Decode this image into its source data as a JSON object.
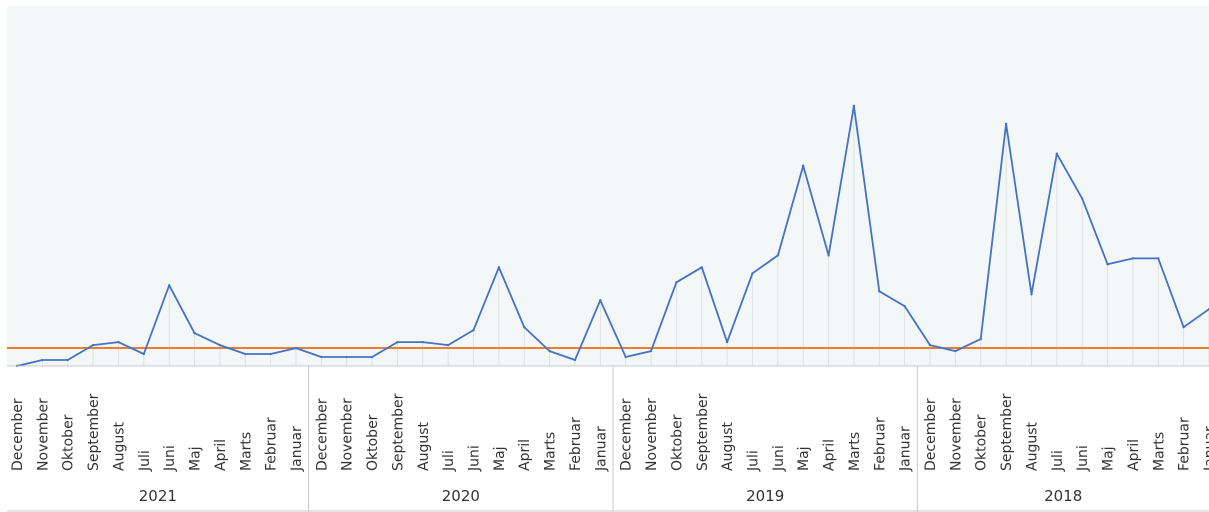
{
  "chart_data": {
    "type": "line",
    "title": "",
    "xlabel": "",
    "ylabel": "",
    "ylim": [
      0,
      100
    ],
    "grid": false,
    "legend": "none",
    "colors": {
      "plot_background": "#f4f7f7",
      "line": "#4472c4",
      "reference_line": "#ed7d31",
      "vertical_guides": "#dcdcdc",
      "separators": "#c8c8c8",
      "text": "#333333"
    },
    "groups": [
      {
        "year": "2021",
        "months": [
          "December",
          "November",
          "Oktober",
          "September",
          "August",
          "Juli",
          "Juni",
          "Maj",
          "April",
          "Marts",
          "Februar",
          "Januar"
        ]
      },
      {
        "year": "2020",
        "months": [
          "December",
          "November",
          "Oktober",
          "September",
          "August",
          "Juli",
          "Juni",
          "Maj",
          "April",
          "Marts",
          "Februar",
          "Januar"
        ]
      },
      {
        "year": "2019",
        "months": [
          "December",
          "November",
          "Oktober",
          "September",
          "August",
          "Juli",
          "Juni",
          "Maj",
          "April",
          "Marts",
          "Februar",
          "Januar"
        ]
      },
      {
        "year": "2018",
        "months": [
          "December",
          "November",
          "Oktober",
          "September",
          "August",
          "Juli",
          "Juni",
          "Maj",
          "April",
          "Marts",
          "Februar",
          "Januar"
        ]
      }
    ],
    "series": [
      {
        "values": [
          0,
          2,
          2,
          7,
          8,
          4,
          27,
          11,
          7,
          4,
          4,
          6,
          3,
          3,
          3,
          8,
          8,
          7,
          12,
          33,
          13,
          5,
          2,
          22,
          3,
          5,
          28,
          33,
          8,
          31,
          37,
          67,
          37,
          87,
          25,
          20,
          7,
          5,
          9,
          81,
          24,
          71,
          56,
          34,
          36,
          36,
          13,
          19
        ]
      }
    ],
    "reference_line": {
      "value": 6
    }
  }
}
